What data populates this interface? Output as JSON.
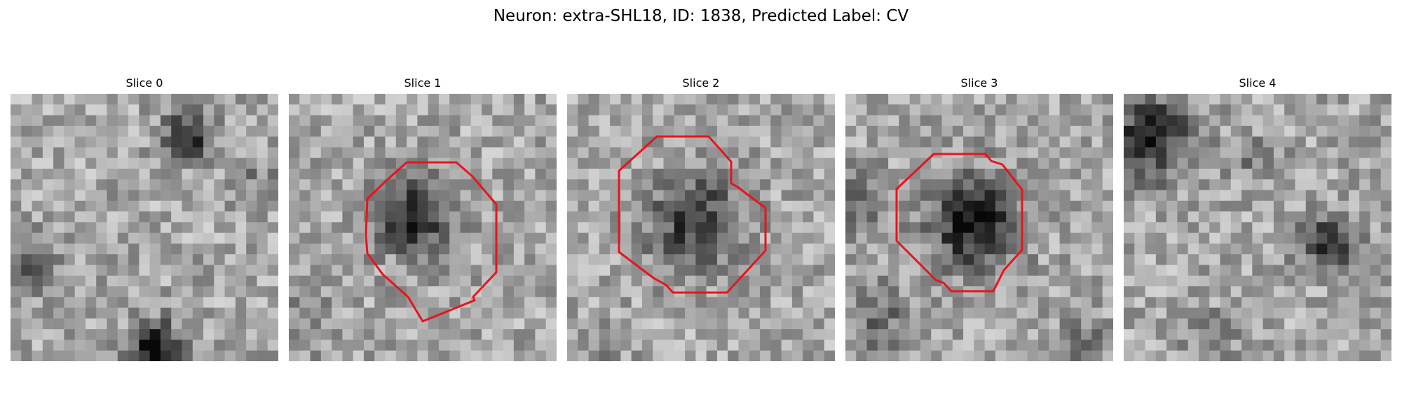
{
  "figure": {
    "title": "Neuron: extra-SHL18, ID: 1838, Predicted Label: CV"
  },
  "slices": [
    {
      "title": "Slice 0",
      "has_roi": false
    },
    {
      "title": "Slice 1",
      "has_roi": true
    },
    {
      "title": "Slice 2",
      "has_roi": true
    },
    {
      "title": "Slice 3",
      "has_roi": true
    },
    {
      "title": "Slice 4",
      "has_roi": false
    }
  ],
  "image": {
    "colormap": "gray",
    "grid": "25x25 pixels",
    "roi_color": "#e8141c"
  }
}
